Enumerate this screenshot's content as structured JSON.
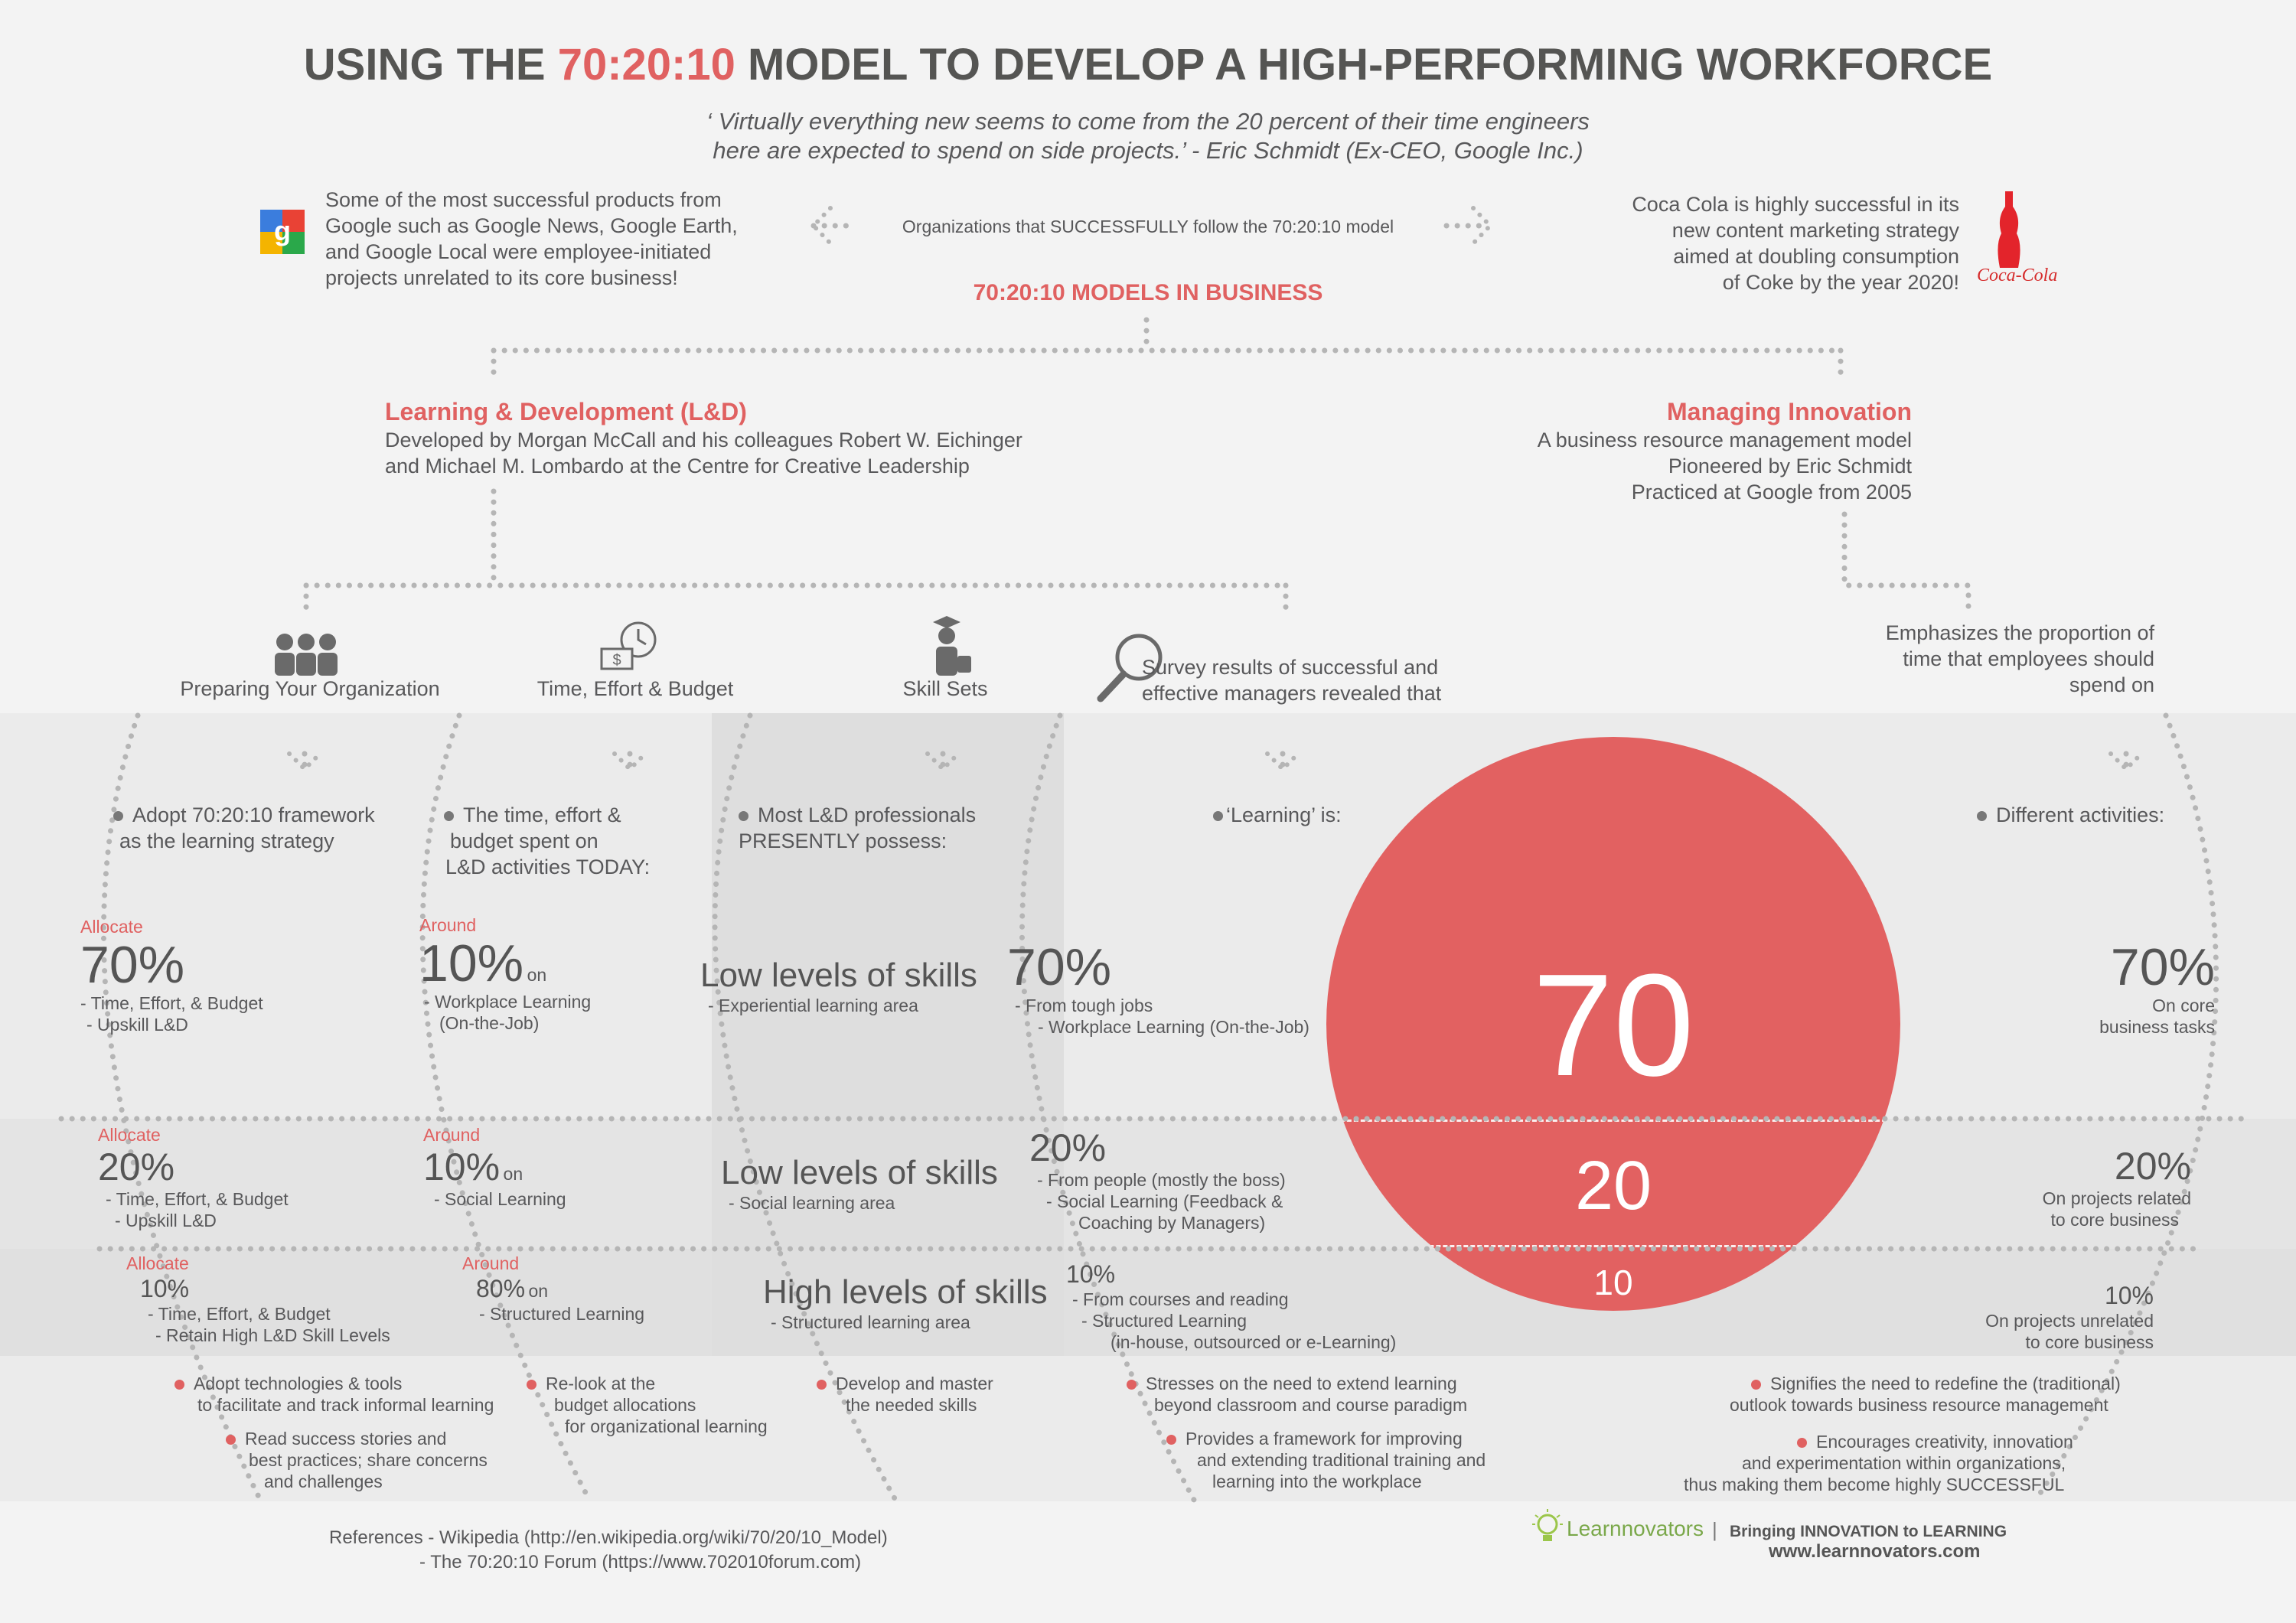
{
  "title": {
    "prefix": "USING THE ",
    "highlight": "70:20:10",
    "suffix": " MODEL TO DEVELOP A HIGH-PERFORMING WORKFORCE"
  },
  "quote": {
    "line1": "‘ Virtually everything new seems to come from the 20 percent of their time engineers",
    "line2": "here are expected to spend on side projects.’ - Eric Schmidt (Ex-CEO, Google Inc.)"
  },
  "google_text": [
    "Some of the most successful products from",
    "Google such as Google News, Google Earth,",
    "and Google Local were employee-initiated",
    "projects unrelated to its core business!"
  ],
  "center_caption": "Organizations that SUCCESSFULLY follow the 70:20:10 model",
  "coke_text": [
    "Coca Cola is highly successful in its",
    "new content marketing strategy",
    "aimed at doubling consumption",
    "of Coke by the year 2020!"
  ],
  "coke_logo_text": "Coca-Cola",
  "models_heading": "70:20:10 MODELS IN BUSINESS",
  "ld": {
    "title": "Learning & Development (L&D)",
    "line1": "Developed by Morgan McCall and his colleagues Robert W. Eichinger",
    "line2": "and Michael M. Lombardo at the Centre for Creative Leadership"
  },
  "mi": {
    "title": "Managing Innovation",
    "line1": "A business resource management model",
    "line2": "Pioneered by Eric Schmidt",
    "line3": "Practiced at Google from 2005"
  },
  "categories": {
    "prep": "Preparing Your Organization",
    "time": "Time, Effort & Budget",
    "skill": "Skill Sets",
    "survey1": "Survey results of successful and",
    "survey2": "effective managers revealed that",
    "emph1": "Emphasizes the proportion of",
    "emph2": "time that employees should",
    "emph3": "spend on"
  },
  "col_prep": {
    "intro1": "Adopt 70:20:10 framework",
    "intro2": "as the learning strategy",
    "a70_label": "Allocate",
    "a70_pct": "70%",
    "a70_l1": "- Time, Effort, & Budget",
    "a70_l2": "- Upskill L&D",
    "a20_label": "Allocate",
    "a20_pct": "20%",
    "a20_l1": "- Time, Effort, & Budget",
    "a20_l2": "- Upskill L&D",
    "a10_label": "Allocate",
    "a10_pct": "10%",
    "a10_l1": "- Time, Effort, & Budget",
    "a10_l2": "- Retain High L&D Skill Levels",
    "b1_l1": "Adopt technologies & tools",
    "b1_l2": "to facilitate and track informal learning",
    "b2_l1": "Read success stories and",
    "b2_l2": "best practices; share concerns",
    "b2_l3": "and challenges"
  },
  "col_time": {
    "intro1": "The time, effort &",
    "intro2": "budget spent on",
    "intro3": "L&D activities TODAY:",
    "r1_label": "Around",
    "r1_pct": "10%",
    "r1_on": "on",
    "r1_l1": "- Workplace Learning",
    "r1_l2": "(On-the-Job)",
    "r2_label": "Around",
    "r2_pct": "10%",
    "r2_on": "on",
    "r2_l1": "- Social Learning",
    "r3_label": "Around",
    "r3_pct": "80%",
    "r3_on": "on",
    "r3_l1": "- Structured Learning",
    "b1_l1": "Re-look at the",
    "b1_l2": "budget allocations",
    "b1_l3": "for organizational learning"
  },
  "col_skill": {
    "intro1": "Most L&D professionals",
    "intro2": "PRESENTLY possess:",
    "r1_title": "Low levels of skills",
    "r1_l1": "- Experiential learning area",
    "r2_title": "Low levels of skills",
    "r2_l1": "- Social learning area",
    "r3_title": "High levels of skills",
    "r3_l1": "- Structured learning area",
    "b1_l1": "Develop and master",
    "b1_l2": "the needed skills"
  },
  "col_survey": {
    "intro": "‘Learning’ is:",
    "r1_pct": "70%",
    "r1_l1": "- From tough jobs",
    "r1_l2": "- Workplace Learning (On-the-Job)",
    "r2_pct": "20%",
    "r2_l1": "- From people (mostly the boss)",
    "r2_l2": "- Social Learning (Feedback &",
    "r2_l3": "Coaching by Managers)",
    "r3_pct": "10%",
    "r3_l1": "- From courses and reading",
    "r3_l2": "- Structured Learning",
    "r3_l3": "(in-house, outsourced or e-Learning)",
    "b1_l1": "Stresses on the need to extend learning",
    "b1_l2": "beyond classroom and course paradigm",
    "b2_l1": "Provides a framework for improving",
    "b2_l2": "and extending traditional training and",
    "b2_l3": "learning into the workplace"
  },
  "circle": {
    "n70": "70",
    "n20": "20",
    "n10": "10",
    "color": "#e26161"
  },
  "col_innov": {
    "intro": "Different activities:",
    "r1_pct": "70%",
    "r1_l1": "On core",
    "r1_l2": "business tasks",
    "r2_pct": "20%",
    "r2_l1": "On projects related",
    "r2_l2": "to core business",
    "r3_pct": "10%",
    "r3_l1": "On projects unrelated",
    "r3_l2": "to core business",
    "b1_l1": "Signifies the need to redefine the (traditional)",
    "b1_l2": "outlook towards business resource management",
    "b2_l1": "Encourages creativity, innovation",
    "b2_l2": "and experimentation within organizations,",
    "b2_l3": "thus making them become highly SUCCESSFUL"
  },
  "references": {
    "l1": "References - Wikipedia (http://en.wikipedia.org/wiki/70/20/10_Model)",
    "l2": "- The 70:20:10 Forum (https://www.702010forum.com)"
  },
  "brand": {
    "name": "Learnnovators",
    "sep": "|",
    "tagline": "Bringing INNOVATION to LEARNING",
    "url": "www.learnnovators.com"
  },
  "colors": {
    "accent": "#e06161",
    "text": "#58585a",
    "band": "#e6e6e6",
    "dots": "#b5b5b5"
  }
}
